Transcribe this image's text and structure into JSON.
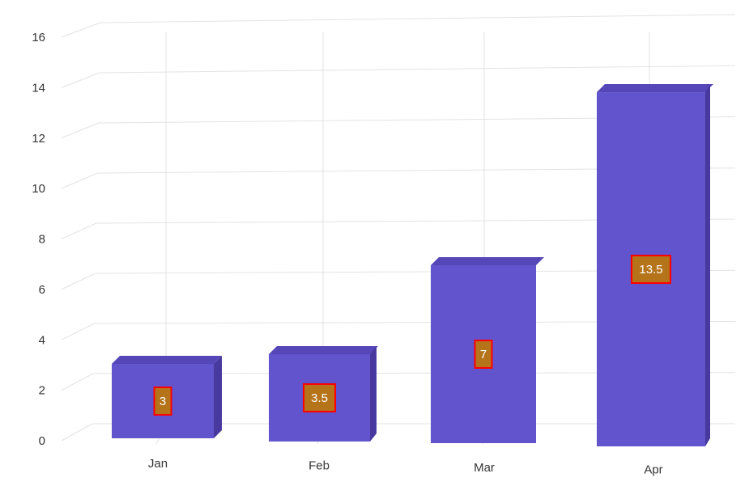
{
  "chart_data": {
    "type": "bar",
    "categories": [
      "Jan",
      "Feb",
      "Mar",
      "Apr"
    ],
    "values": [
      3,
      3.5,
      7,
      13.5
    ],
    "data_labels": [
      "3",
      "3.5",
      "7",
      "13.5"
    ],
    "ylim": [
      0,
      16
    ],
    "yticks": [
      0,
      2,
      4,
      6,
      8,
      10,
      12,
      14,
      16
    ],
    "grid": true,
    "legend": "none",
    "title": "",
    "xlabel": "",
    "ylabel": ""
  },
  "colors": {
    "bar_front": "#6254cc",
    "bar_top": "#5547b8",
    "bar_side": "#47399e",
    "label_fill": "#b5731a",
    "label_border": "#ff0000",
    "grid": "#e3e3e3"
  }
}
